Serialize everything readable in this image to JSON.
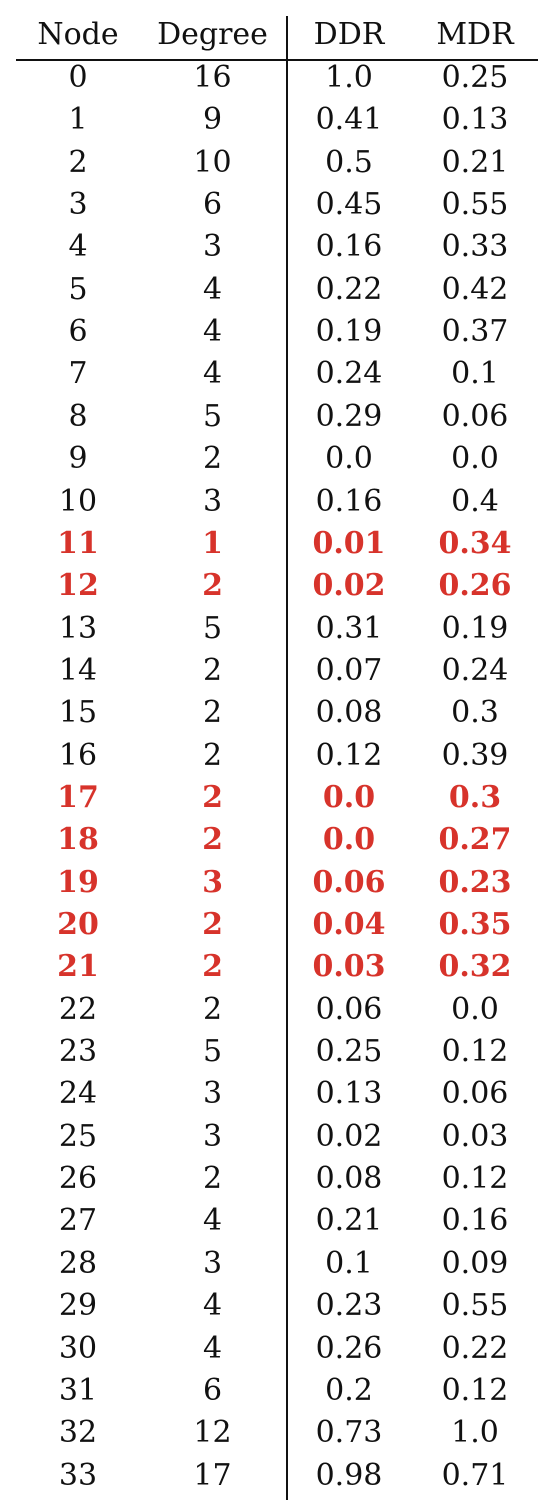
{
  "chart_data": {
    "type": "table",
    "highlight_color": "#d7332b",
    "columns": [
      "Node",
      "Degree",
      "DDR",
      "MDR"
    ],
    "rows": [
      {
        "cells": [
          "0",
          "16",
          "1.0",
          "0.25"
        ],
        "highlight": false
      },
      {
        "cells": [
          "1",
          "9",
          "0.41",
          "0.13"
        ],
        "highlight": false
      },
      {
        "cells": [
          "2",
          "10",
          "0.5",
          "0.21"
        ],
        "highlight": false
      },
      {
        "cells": [
          "3",
          "6",
          "0.45",
          "0.55"
        ],
        "highlight": false
      },
      {
        "cells": [
          "4",
          "3",
          "0.16",
          "0.33"
        ],
        "highlight": false
      },
      {
        "cells": [
          "5",
          "4",
          "0.22",
          "0.42"
        ],
        "highlight": false
      },
      {
        "cells": [
          "6",
          "4",
          "0.19",
          "0.37"
        ],
        "highlight": false
      },
      {
        "cells": [
          "7",
          "4",
          "0.24",
          "0.1"
        ],
        "highlight": false
      },
      {
        "cells": [
          "8",
          "5",
          "0.29",
          "0.06"
        ],
        "highlight": false
      },
      {
        "cells": [
          "9",
          "2",
          "0.0",
          "0.0"
        ],
        "highlight": false
      },
      {
        "cells": [
          "10",
          "3",
          "0.16",
          "0.4"
        ],
        "highlight": false
      },
      {
        "cells": [
          "11",
          "1",
          "0.01",
          "0.34"
        ],
        "highlight": true
      },
      {
        "cells": [
          "12",
          "2",
          "0.02",
          "0.26"
        ],
        "highlight": true
      },
      {
        "cells": [
          "13",
          "5",
          "0.31",
          "0.19"
        ],
        "highlight": false
      },
      {
        "cells": [
          "14",
          "2",
          "0.07",
          "0.24"
        ],
        "highlight": false
      },
      {
        "cells": [
          "15",
          "2",
          "0.08",
          "0.3"
        ],
        "highlight": false
      },
      {
        "cells": [
          "16",
          "2",
          "0.12",
          "0.39"
        ],
        "highlight": false
      },
      {
        "cells": [
          "17",
          "2",
          "0.0",
          "0.3"
        ],
        "highlight": true
      },
      {
        "cells": [
          "18",
          "2",
          "0.0",
          "0.27"
        ],
        "highlight": true
      },
      {
        "cells": [
          "19",
          "3",
          "0.06",
          "0.23"
        ],
        "highlight": true
      },
      {
        "cells": [
          "20",
          "2",
          "0.04",
          "0.35"
        ],
        "highlight": true
      },
      {
        "cells": [
          "21",
          "2",
          "0.03",
          "0.32"
        ],
        "highlight": true
      },
      {
        "cells": [
          "22",
          "2",
          "0.06",
          "0.0"
        ],
        "highlight": false
      },
      {
        "cells": [
          "23",
          "5",
          "0.25",
          "0.12"
        ],
        "highlight": false
      },
      {
        "cells": [
          "24",
          "3",
          "0.13",
          "0.06"
        ],
        "highlight": false
      },
      {
        "cells": [
          "25",
          "3",
          "0.02",
          "0.03"
        ],
        "highlight": false
      },
      {
        "cells": [
          "26",
          "2",
          "0.08",
          "0.12"
        ],
        "highlight": false
      },
      {
        "cells": [
          "27",
          "4",
          "0.21",
          "0.16"
        ],
        "highlight": false
      },
      {
        "cells": [
          "28",
          "3",
          "0.1",
          "0.09"
        ],
        "highlight": false
      },
      {
        "cells": [
          "29",
          "4",
          "0.23",
          "0.55"
        ],
        "highlight": false
      },
      {
        "cells": [
          "30",
          "4",
          "0.26",
          "0.22"
        ],
        "highlight": false
      },
      {
        "cells": [
          "31",
          "6",
          "0.2",
          "0.12"
        ],
        "highlight": false
      },
      {
        "cells": [
          "32",
          "12",
          "0.73",
          "1.0"
        ],
        "highlight": false
      },
      {
        "cells": [
          "33",
          "17",
          "0.98",
          "0.71"
        ],
        "highlight": false
      }
    ]
  }
}
